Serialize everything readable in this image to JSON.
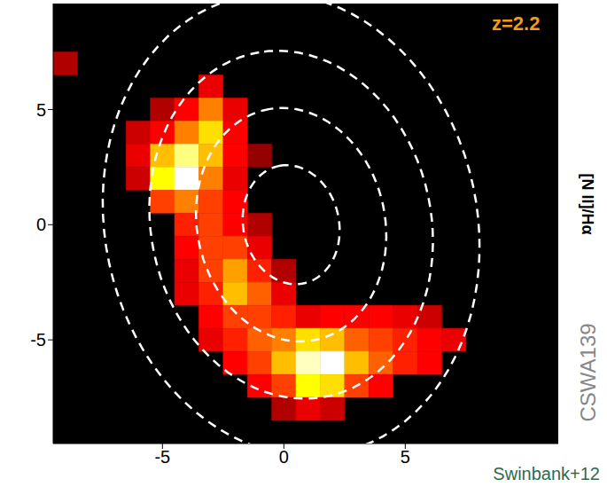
{
  "chart_data": {
    "type": "heatmap",
    "annotations": {
      "redshift": "z=2.2",
      "object": "CSWA139",
      "credit": "Swinbank+12"
    },
    "colorbar_label": "[N II]/Hα",
    "xlim": [
      -9.5,
      11.3
    ],
    "ylim": [
      -9.5,
      9.6
    ],
    "xticks": [
      -5,
      0,
      5
    ],
    "yticks": [
      -5,
      0,
      5
    ],
    "grid": false,
    "zlim": [
      0,
      1
    ],
    "cells": [
      [
        -9,
        7,
        0.2
      ],
      [
        -3,
        6,
        0.3
      ],
      [
        -5,
        5,
        0.2
      ],
      [
        -4,
        5,
        0.35
      ],
      [
        -3,
        5,
        0.6
      ],
      [
        -2,
        5,
        0.3
      ],
      [
        -6,
        4,
        0.25
      ],
      [
        -5,
        4,
        0.4
      ],
      [
        -4,
        4,
        0.6
      ],
      [
        -3,
        4,
        0.75
      ],
      [
        -2,
        4,
        0.4
      ],
      [
        -6,
        3,
        0.3
      ],
      [
        -5,
        3,
        0.7
      ],
      [
        -4,
        3,
        0.9
      ],
      [
        -3,
        3,
        0.7
      ],
      [
        -2,
        3,
        0.35
      ],
      [
        -1,
        3,
        0.15
      ],
      [
        -6,
        2,
        0.25
      ],
      [
        -5,
        2,
        0.8
      ],
      [
        -4,
        2,
        1.0
      ],
      [
        -3,
        2,
        0.6
      ],
      [
        -2,
        2,
        0.3
      ],
      [
        -5,
        1,
        0.5
      ],
      [
        -4,
        1,
        0.6
      ],
      [
        -3,
        1,
        0.5
      ],
      [
        -2,
        1,
        0.35
      ],
      [
        -4,
        0,
        0.45
      ],
      [
        -3,
        0,
        0.5
      ],
      [
        -2,
        0,
        0.4
      ],
      [
        -1,
        0,
        0.2
      ],
      [
        -4,
        -1,
        0.35
      ],
      [
        -3,
        -1,
        0.5
      ],
      [
        -2,
        -1,
        0.5
      ],
      [
        -1,
        -1,
        0.3
      ],
      [
        -4,
        -2,
        0.3
      ],
      [
        -3,
        -2,
        0.5
      ],
      [
        -2,
        -2,
        0.65
      ],
      [
        -1,
        -2,
        0.45
      ],
      [
        0,
        -2,
        0.2
      ],
      [
        -4,
        -3,
        0.3
      ],
      [
        -3,
        -3,
        0.45
      ],
      [
        -2,
        -3,
        0.7
      ],
      [
        -1,
        -3,
        0.55
      ],
      [
        0,
        -3,
        0.3
      ],
      [
        -3,
        -4,
        0.4
      ],
      [
        -2,
        -4,
        0.5
      ],
      [
        -1,
        -4,
        0.5
      ],
      [
        0,
        -4,
        0.45
      ],
      [
        1,
        -4,
        0.3
      ],
      [
        2,
        -4,
        0.35
      ],
      [
        3,
        -4,
        0.4
      ],
      [
        4,
        -4,
        0.35
      ],
      [
        5,
        -4,
        0.3
      ],
      [
        6,
        -4,
        0.25
      ],
      [
        -3,
        -5,
        0.3
      ],
      [
        -2,
        -5,
        0.45
      ],
      [
        -1,
        -5,
        0.55
      ],
      [
        0,
        -5,
        0.6
      ],
      [
        1,
        -5,
        0.75
      ],
      [
        2,
        -5,
        0.7
      ],
      [
        3,
        -5,
        0.55
      ],
      [
        4,
        -5,
        0.5
      ],
      [
        5,
        -5,
        0.45
      ],
      [
        6,
        -5,
        0.4
      ],
      [
        7,
        -5,
        0.3
      ],
      [
        -2,
        -6,
        0.35
      ],
      [
        -1,
        -6,
        0.5
      ],
      [
        0,
        -6,
        0.7
      ],
      [
        1,
        -6,
        0.95
      ],
      [
        2,
        -6,
        1.0
      ],
      [
        3,
        -6,
        0.7
      ],
      [
        4,
        -6,
        0.55
      ],
      [
        5,
        -6,
        0.45
      ],
      [
        6,
        -6,
        0.35
      ],
      [
        -1,
        -7,
        0.35
      ],
      [
        0,
        -7,
        0.5
      ],
      [
        1,
        -7,
        0.8
      ],
      [
        2,
        -7,
        0.75
      ],
      [
        3,
        -7,
        0.5
      ],
      [
        4,
        -7,
        0.35
      ],
      [
        0,
        -8,
        0.2
      ],
      [
        1,
        -8,
        0.3
      ],
      [
        2,
        -8,
        0.25
      ]
    ],
    "contours": {
      "center": [
        0.3,
        0
      ],
      "semi_major": [
        2.6,
        5.1,
        7.6,
        10.1
      ],
      "axis_ratio": 0.76,
      "angle": 100,
      "color": "#ffffff",
      "line_style": "dashed"
    }
  }
}
